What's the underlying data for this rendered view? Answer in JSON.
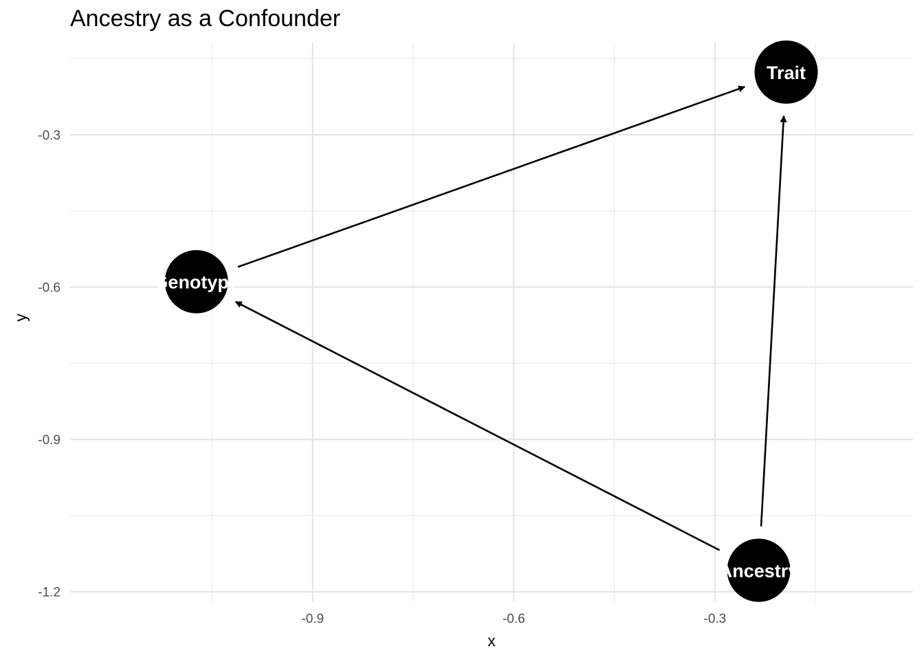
{
  "chart_data": {
    "type": "scatter",
    "title": "Ancestry as a Confounder",
    "xlabel": "x",
    "ylabel": "y",
    "x_ticks": [
      "-0.9",
      "-0.6",
      "-0.3"
    ],
    "y_ticks": [
      "-0.3",
      "-0.6",
      "-0.9",
      "-1.2"
    ],
    "x_tick_values": [
      -0.9,
      -0.6,
      -0.3
    ],
    "y_tick_values": [
      -0.3,
      -0.6,
      -0.9,
      -1.2
    ],
    "xlim": [
      -1.2619,
      -0.0045
    ],
    "ylim": [
      -1.2193,
      -0.1185
    ],
    "grid": true,
    "nodes": [
      {
        "id": "genotype",
        "name": "Genotype",
        "label": "Genotype",
        "x": -1.0735,
        "y": -0.5893
      },
      {
        "id": "trait",
        "name": "Trait",
        "label": "Trait",
        "x": -0.1937,
        "y": -0.1765
      },
      {
        "id": "ancestry",
        "name": "Ancestry",
        "label": "Ancestry",
        "x": -0.2347,
        "y": -1.1577
      }
    ],
    "edges": [
      {
        "from": "genotype",
        "to": "trait"
      },
      {
        "from": "ancestry",
        "to": "genotype"
      },
      {
        "from": "ancestry",
        "to": "trait"
      }
    ]
  }
}
